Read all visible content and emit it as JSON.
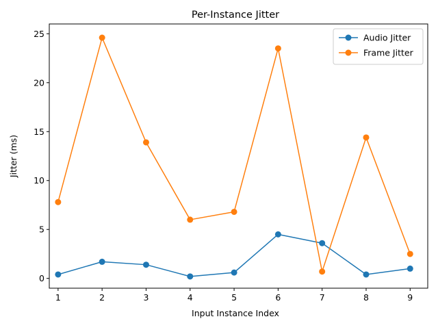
{
  "chart_data": {
    "type": "line",
    "title": "Per-Instance Jitter",
    "xlabel": "Input Instance Index",
    "ylabel": "Jitter (ms)",
    "x": [
      1,
      2,
      3,
      4,
      5,
      6,
      7,
      8,
      9
    ],
    "xlim": [
      0.8,
      9.4
    ],
    "ylim": [
      -1.0,
      26.0
    ],
    "xticks": [
      1,
      2,
      3,
      4,
      5,
      6,
      7,
      8,
      9
    ],
    "yticks": [
      0,
      5,
      10,
      15,
      20,
      25
    ],
    "grid": false,
    "legend_position": "top-right",
    "series": [
      {
        "name": "Audio Jitter",
        "color": "#1f77b4",
        "marker": "circle",
        "values": [
          0.4,
          1.7,
          1.4,
          0.2,
          0.6,
          4.5,
          3.6,
          0.4,
          1.0
        ]
      },
      {
        "name": "Frame Jitter",
        "color": "#ff7f0e",
        "marker": "circle",
        "values": [
          7.8,
          24.6,
          13.9,
          6.0,
          6.8,
          23.5,
          0.7,
          14.4,
          2.5
        ]
      }
    ]
  }
}
